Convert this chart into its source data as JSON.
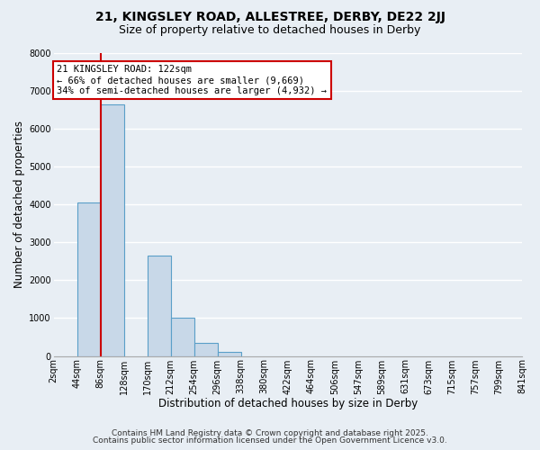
{
  "title": "21, KINGSLEY ROAD, ALLESTREE, DERBY, DE22 2JJ",
  "subtitle": "Size of property relative to detached houses in Derby",
  "xlabel": "Distribution of detached houses by size in Derby",
  "ylabel": "Number of detached properties",
  "bin_labels": [
    "2sqm",
    "44sqm",
    "86sqm",
    "128sqm",
    "170sqm",
    "212sqm",
    "254sqm",
    "296sqm",
    "338sqm",
    "380sqm",
    "422sqm",
    "464sqm",
    "506sqm",
    "547sqm",
    "589sqm",
    "631sqm",
    "673sqm",
    "715sqm",
    "757sqm",
    "799sqm",
    "841sqm"
  ],
  "bar_values": [
    0,
    4050,
    6650,
    0,
    2650,
    1000,
    340,
    110,
    0,
    0,
    0,
    0,
    0,
    0,
    0,
    0,
    0,
    0,
    0,
    0
  ],
  "bar_color": "#c8d8e8",
  "bar_edge_color": "#5a9fc8",
  "bar_edge_width": 0.8,
  "vline_color": "#cc0000",
  "annotation_text": "21 KINGSLEY ROAD: 122sqm\n← 66% of detached houses are smaller (9,669)\n34% of semi-detached houses are larger (4,932) →",
  "annotation_box_color": "#ffffff",
  "annotation_box_edge_color": "#cc0000",
  "ylim": [
    0,
    8000
  ],
  "yticks": [
    0,
    1000,
    2000,
    3000,
    4000,
    5000,
    6000,
    7000,
    8000
  ],
  "footer1": "Contains HM Land Registry data © Crown copyright and database right 2025.",
  "footer2": "Contains public sector information licensed under the Open Government Licence v3.0.",
  "bg_color": "#e8eef4",
  "plot_bg_color": "#e8eef4",
  "grid_color": "#ffffff",
  "title_fontsize": 10,
  "subtitle_fontsize": 9,
  "axis_label_fontsize": 8.5,
  "tick_fontsize": 7,
  "annot_fontsize": 7.5,
  "footer_fontsize": 6.5
}
